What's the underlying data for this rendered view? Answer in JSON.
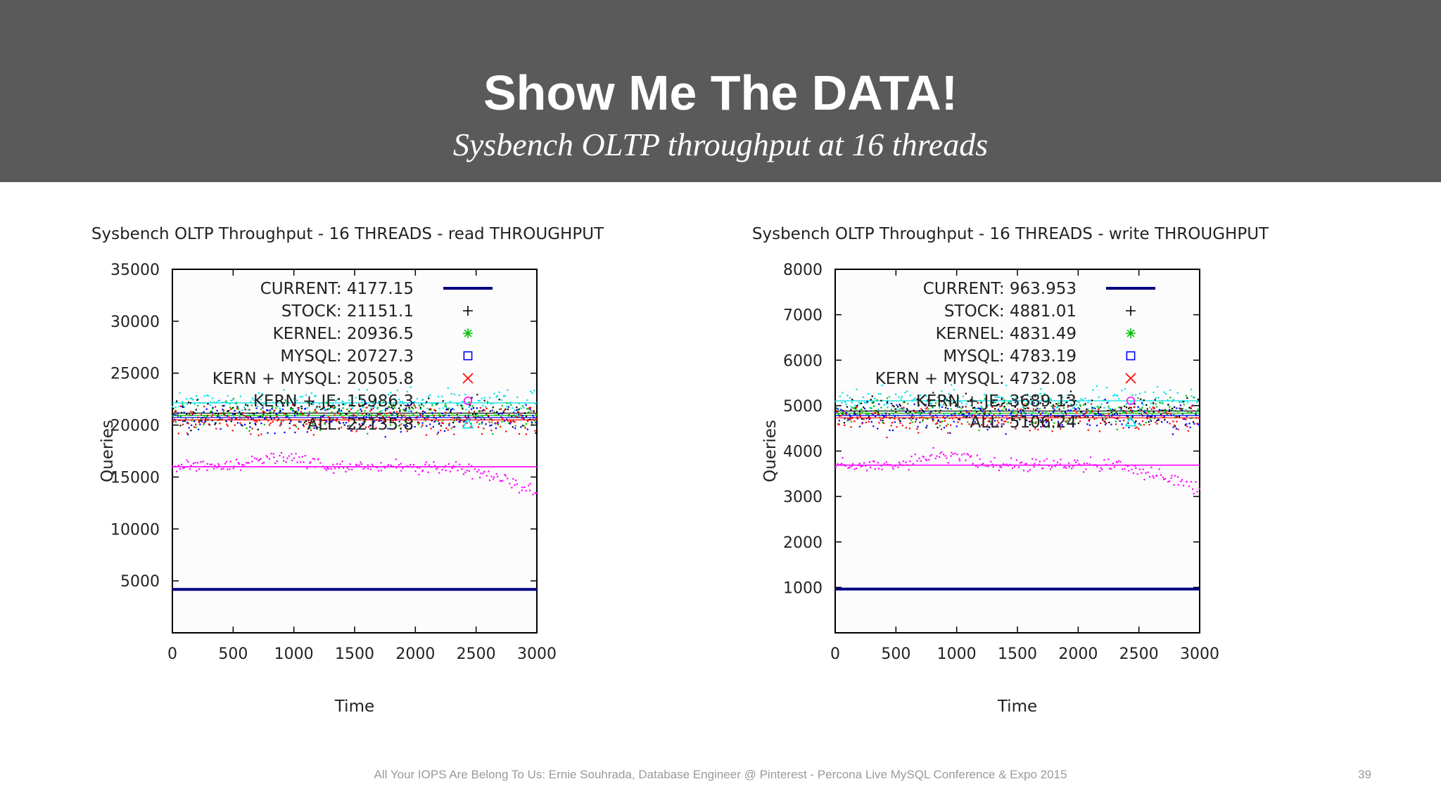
{
  "slide": {
    "title": "Show Me The DATA!",
    "subtitle": "Sysbench OLTP throughput at 16 threads",
    "footer": "All Your IOPS Are Belong To Us: Ernie Souhrada, Database Engineer @ Pinterest - Percona Live MySQL Conference & Expo 2015",
    "page_number": "39"
  },
  "chart_data": [
    {
      "type": "scatter",
      "title": "Sysbench OLTP Throughput - 16 THREADS - read THROUGHPUT",
      "xlabel": "Time",
      "ylabel": "Queries",
      "xlim": [
        0,
        3000
      ],
      "ylim": [
        0,
        35000
      ],
      "xticks": [
        0,
        500,
        1000,
        1500,
        2000,
        2500,
        3000
      ],
      "yticks": [
        5000,
        10000,
        15000,
        20000,
        25000,
        30000,
        35000
      ],
      "legend_position": "top-right",
      "series": [
        {
          "name": "CURRENT",
          "label": "CURRENT: 4177.15",
          "mean": 4177.15,
          "spread": 0,
          "marker": "line",
          "color": "#000080"
        },
        {
          "name": "STOCK",
          "label": "STOCK: 21151.1",
          "mean": 21151.1,
          "spread": 700,
          "marker": "plus",
          "color": "#000000"
        },
        {
          "name": "KERNEL",
          "label": "KERNEL: 20936.5",
          "mean": 20936.5,
          "spread": 700,
          "marker": "star",
          "color": "#00c000"
        },
        {
          "name": "MYSQL",
          "label": "MYSQL: 20727.3",
          "mean": 20727.3,
          "spread": 700,
          "marker": "square",
          "color": "#0000ff"
        },
        {
          "name": "KERN + MYSQL",
          "label": "KERN + MYSQL: 20505.8",
          "mean": 20505.8,
          "spread": 700,
          "marker": "cross",
          "color": "#ff0000"
        },
        {
          "name": "KERN + JE",
          "label": "KERN + JE: 15986.3",
          "mean": 15986.3,
          "spread": 500,
          "marker": "circle",
          "color": "#ff00ff"
        },
        {
          "name": "ALL",
          "label": "ALL: 22135.8",
          "mean": 22135.8,
          "spread": 600,
          "marker": "triangle",
          "color": "#00e0e0"
        }
      ]
    },
    {
      "type": "scatter",
      "title": "Sysbench OLTP Throughput - 16 THREADS - write THROUGHPUT",
      "xlabel": "Time",
      "ylabel": "Queries",
      "xlim": [
        0,
        3000
      ],
      "ylim": [
        0,
        8000
      ],
      "xticks": [
        0,
        500,
        1000,
        1500,
        2000,
        2500,
        3000
      ],
      "yticks": [
        1000,
        2000,
        3000,
        4000,
        5000,
        6000,
        7000,
        8000
      ],
      "legend_position": "top-right",
      "series": [
        {
          "name": "CURRENT",
          "label": "CURRENT: 963.953",
          "mean": 963.953,
          "spread": 0,
          "marker": "line",
          "color": "#000080"
        },
        {
          "name": "STOCK",
          "label": "STOCK: 4881.01",
          "mean": 4881.01,
          "spread": 160,
          "marker": "plus",
          "color": "#000000"
        },
        {
          "name": "KERNEL",
          "label": "KERNEL: 4831.49",
          "mean": 4831.49,
          "spread": 160,
          "marker": "star",
          "color": "#00c000"
        },
        {
          "name": "MYSQL",
          "label": "MYSQL: 4783.19",
          "mean": 4783.19,
          "spread": 160,
          "marker": "square",
          "color": "#0000ff"
        },
        {
          "name": "KERN + MYSQL",
          "label": "KERN + MYSQL: 4732.08",
          "mean": 4732.08,
          "spread": 160,
          "marker": "cross",
          "color": "#ff0000"
        },
        {
          "name": "KERN + JE",
          "label": "KERN + JE: 3689.13",
          "mean": 3689.13,
          "spread": 120,
          "marker": "circle",
          "color": "#ff00ff"
        },
        {
          "name": "ALL",
          "label": "ALL: 5106.24",
          "mean": 5106.24,
          "spread": 140,
          "marker": "triangle",
          "color": "#00e0e0"
        }
      ]
    }
  ]
}
